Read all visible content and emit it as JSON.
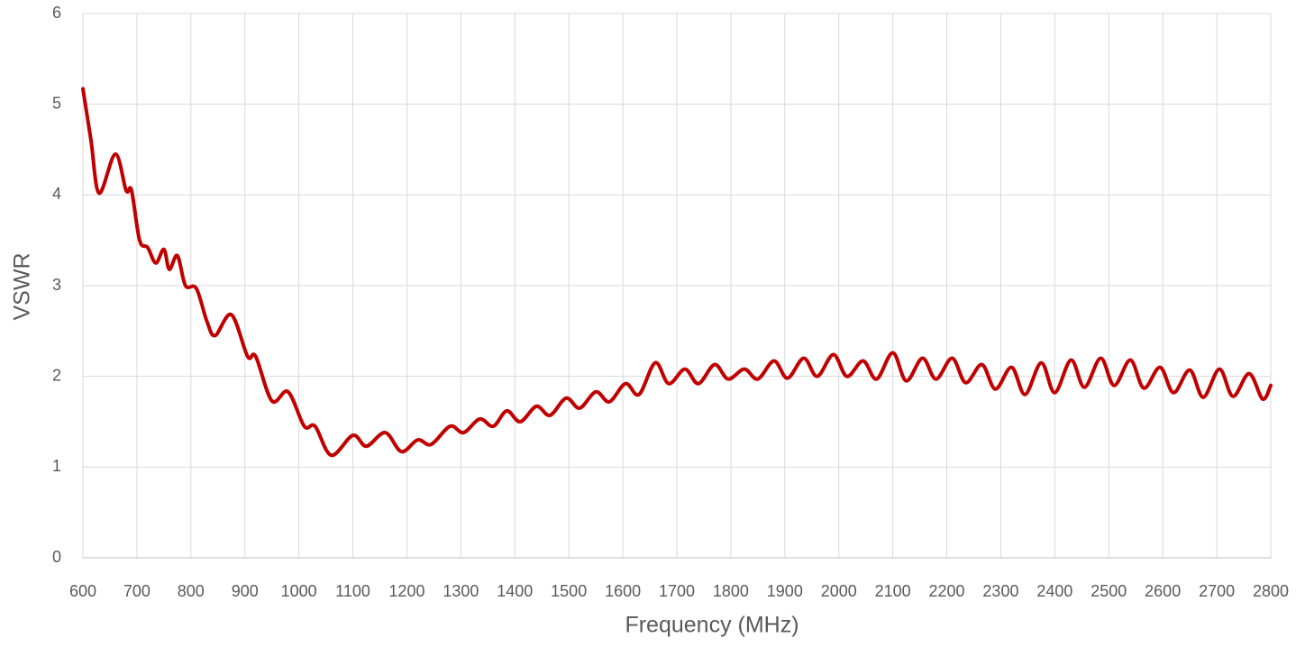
{
  "chart_data": {
    "type": "line",
    "x_label": "Frequency (MHz)",
    "y_label": "VSWR",
    "color": "#c00000",
    "grid": true,
    "xlim": [
      600,
      2800
    ],
    "xticks": [
      600,
      700,
      800,
      900,
      1000,
      1100,
      1200,
      1300,
      1400,
      1500,
      1600,
      1700,
      1800,
      1900,
      2000,
      2100,
      2200,
      2300,
      2400,
      2500,
      2600,
      2700,
      2800
    ],
    "ylim": [
      0,
      6
    ],
    "yticks": [
      0,
      1,
      2,
      3,
      4,
      5,
      6
    ],
    "x": [
      600,
      615,
      630,
      660,
      680,
      690,
      705,
      720,
      735,
      750,
      760,
      775,
      790,
      810,
      830,
      845,
      875,
      905,
      920,
      950,
      980,
      1010,
      1030,
      1060,
      1100,
      1125,
      1160,
      1190,
      1220,
      1245,
      1280,
      1305,
      1335,
      1360,
      1385,
      1410,
      1440,
      1465,
      1495,
      1520,
      1550,
      1575,
      1605,
      1630,
      1660,
      1685,
      1715,
      1740,
      1770,
      1795,
      1825,
      1850,
      1880,
      1905,
      1935,
      1960,
      1990,
      2015,
      2045,
      2070,
      2100,
      2125,
      2155,
      2180,
      2210,
      2235,
      2265,
      2290,
      2320,
      2345,
      2375,
      2400,
      2430,
      2455,
      2485,
      2510,
      2540,
      2565,
      2595,
      2620,
      2650,
      2675,
      2705,
      2730,
      2760,
      2785,
      2800
    ],
    "values": [
      5.17,
      4.6,
      4.02,
      4.45,
      4.05,
      4.05,
      3.5,
      3.42,
      3.25,
      3.4,
      3.18,
      3.33,
      3.0,
      2.97,
      2.6,
      2.45,
      2.68,
      2.22,
      2.22,
      1.73,
      1.83,
      1.45,
      1.45,
      1.13,
      1.35,
      1.23,
      1.38,
      1.17,
      1.3,
      1.25,
      1.45,
      1.38,
      1.53,
      1.45,
      1.62,
      1.5,
      1.67,
      1.57,
      1.76,
      1.65,
      1.83,
      1.72,
      1.92,
      1.8,
      2.15,
      1.92,
      2.08,
      1.92,
      2.13,
      1.97,
      2.08,
      1.97,
      2.17,
      1.98,
      2.2,
      2.0,
      2.24,
      2.0,
      2.17,
      1.97,
      2.26,
      1.95,
      2.2,
      1.97,
      2.2,
      1.93,
      2.13,
      1.86,
      2.1,
      1.8,
      2.15,
      1.82,
      2.18,
      1.88,
      2.2,
      1.9,
      2.18,
      1.87,
      2.1,
      1.82,
      2.07,
      1.77,
      2.08,
      1.78,
      2.03,
      1.75,
      1.9
    ]
  }
}
